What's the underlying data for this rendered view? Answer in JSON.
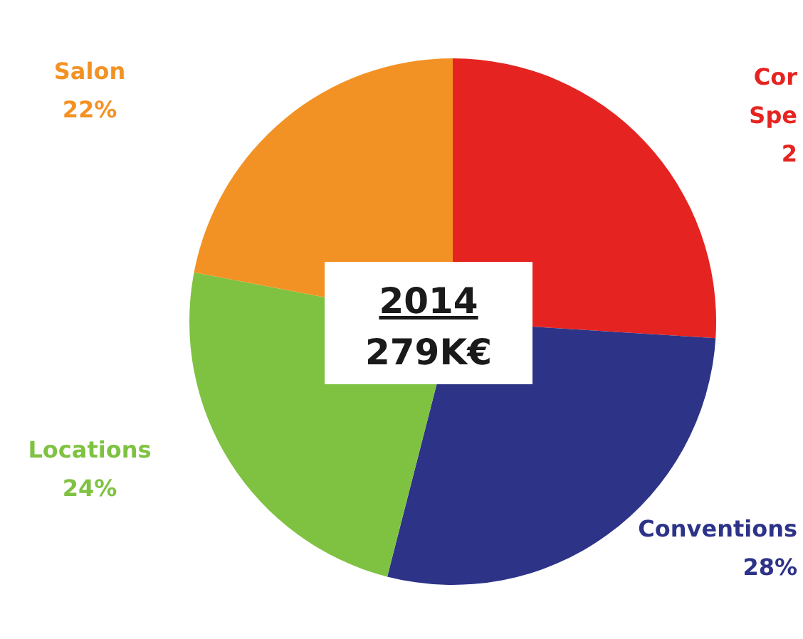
{
  "chart_data": {
    "type": "pie",
    "title": "2014",
    "subtitle": "279K€",
    "categories": [
      "Cor\nSpe\n2",
      "Conventions",
      "Locations",
      "Salon"
    ],
    "values": [
      26,
      28,
      24,
      22
    ],
    "value_labels": [
      null,
      "28%",
      "24%",
      "22%"
    ],
    "colors": [
      "#e52421",
      "#2d3387",
      "#7fc241",
      "#f39224"
    ]
  }
}
